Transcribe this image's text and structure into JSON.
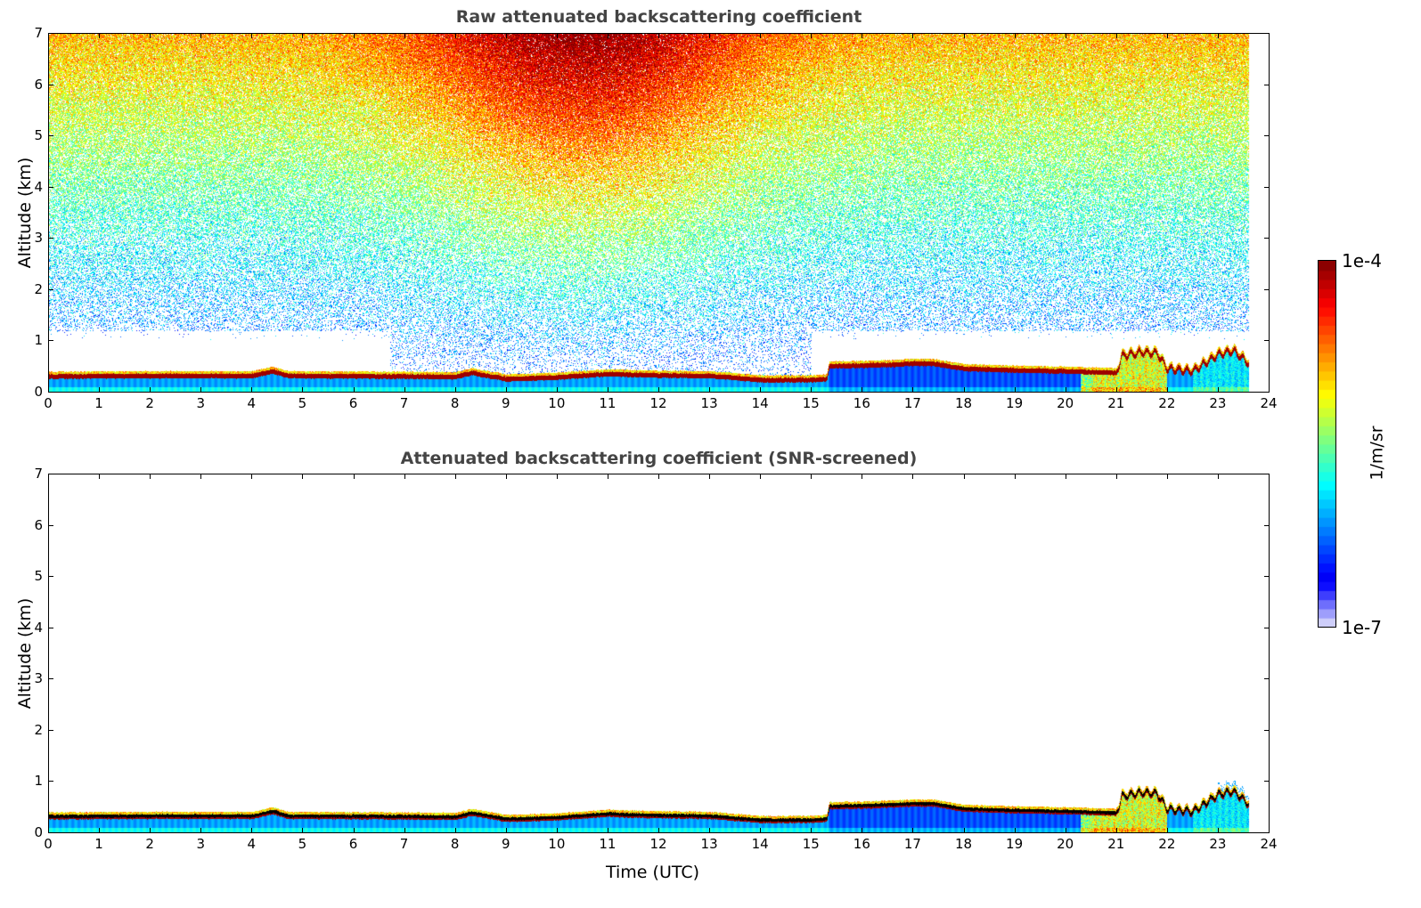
{
  "chart_data": [
    {
      "type": "heatmap",
      "title": "Raw attenuated backscattering coefficient",
      "xlabel": "",
      "ylabel": "Altitude (km)",
      "xlim": [
        0,
        24
      ],
      "ylim": [
        0,
        7
      ],
      "xticks": [
        "0",
        "1",
        "2",
        "3",
        "4",
        "5",
        "6",
        "7",
        "8",
        "9",
        "10",
        "11",
        "12",
        "13",
        "14",
        "15",
        "16",
        "17",
        "18",
        "19",
        "20",
        "21",
        "22",
        "23",
        "24"
      ],
      "yticks": [
        "0",
        "1",
        "2",
        "3",
        "4",
        "5",
        "6",
        "7"
      ],
      "screened": false
    },
    {
      "type": "heatmap",
      "title": "Attenuated backscattering coefficient (SNR-screened)",
      "xlabel": "Time (UTC)",
      "ylabel": "Altitude (km)",
      "xlim": [
        0,
        24
      ],
      "ylim": [
        0,
        7
      ],
      "xticks": [
        "0",
        "1",
        "2",
        "3",
        "4",
        "5",
        "6",
        "7",
        "8",
        "9",
        "10",
        "11",
        "12",
        "13",
        "14",
        "15",
        "16",
        "17",
        "18",
        "19",
        "20",
        "21",
        "22",
        "23",
        "24"
      ],
      "yticks": [
        "0",
        "1",
        "2",
        "3",
        "4",
        "5",
        "6",
        "7"
      ],
      "screened": true
    }
  ],
  "layer_top_km": {
    "time_utc": [
      0,
      2,
      4,
      4.4,
      4.7,
      7,
      8,
      8.3,
      9,
      10,
      11,
      12,
      13,
      14,
      15,
      15.3,
      15.35,
      16,
      17,
      17.4,
      18,
      19,
      20,
      21,
      21.1,
      21.5,
      21.8,
      22,
      22.5,
      23,
      23.3,
      23.6
    ],
    "altitude": [
      0.35,
      0.36,
      0.36,
      0.45,
      0.36,
      0.35,
      0.34,
      0.42,
      0.3,
      0.33,
      0.4,
      0.37,
      0.36,
      0.28,
      0.28,
      0.3,
      0.55,
      0.56,
      0.6,
      0.6,
      0.5,
      0.47,
      0.45,
      0.42,
      0.75,
      0.82,
      0.8,
      0.5,
      0.45,
      0.78,
      0.85,
      0.6
    ]
  },
  "data_end_time_utc": 23.6,
  "colorbar": {
    "label": "1/m/sr",
    "min_label": "1e-7",
    "max_label": "1e-4",
    "scale": "log",
    "range": [
      1e-07,
      0.0001
    ],
    "colormap": "jet"
  }
}
